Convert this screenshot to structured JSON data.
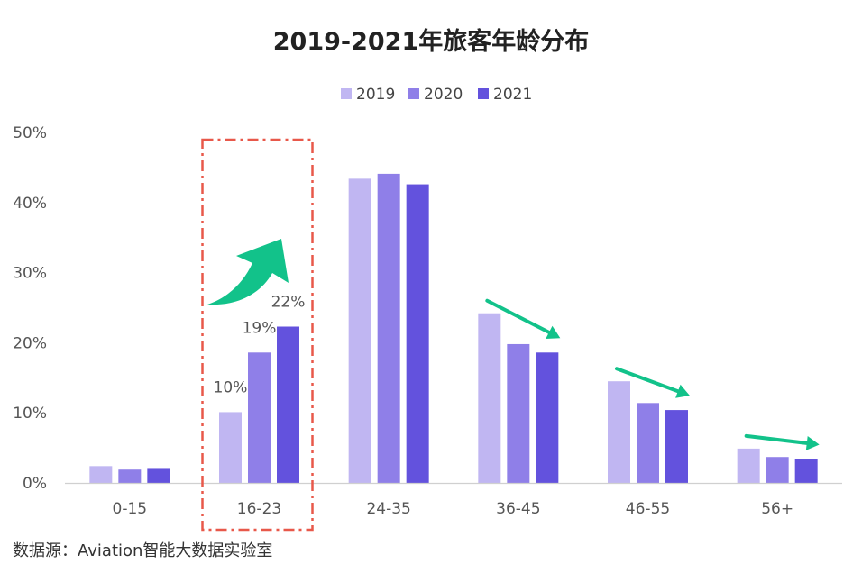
{
  "chart_data": {
    "type": "bar",
    "title": "2019-2021年旅客年龄分布",
    "categories": [
      "0-15",
      "16-23",
      "24-35",
      "36-45",
      "46-55",
      "56+"
    ],
    "series": [
      {
        "name": "2019",
        "color": "#c0b6f2",
        "values": [
          2.4,
          10.1,
          43.4,
          24.2,
          14.5,
          4.9
        ]
      },
      {
        "name": "2020",
        "color": "#8f7fe8",
        "values": [
          1.9,
          18.6,
          44.1,
          19.8,
          11.4,
          3.7
        ]
      },
      {
        "name": "2021",
        "color": "#6352dd",
        "values": [
          2.0,
          22.3,
          42.6,
          18.6,
          10.4,
          3.4
        ]
      }
    ],
    "ylim": [
      0,
      50
    ],
    "yticks": [
      "0%",
      "10%",
      "20%",
      "30%",
      "40%",
      "50%"
    ],
    "ytick_values": [
      0,
      10,
      20,
      30,
      40,
      50
    ],
    "data_labels": [
      {
        "category": "16-23",
        "series": "2019",
        "text": "10%"
      },
      {
        "category": "16-23",
        "series": "2020",
        "text": "19%"
      },
      {
        "category": "16-23",
        "series": "2021",
        "text": "22%"
      }
    ],
    "legend_position": "top-center",
    "grid": false,
    "highlight": {
      "category": "16-23",
      "style": "dash-dot box",
      "color": "#e8584a"
    },
    "trend_arrows": [
      {
        "category": "16-23",
        "direction": "up",
        "color": "#12c28a"
      },
      {
        "category": "36-45",
        "direction": "down",
        "color": "#12c28a"
      },
      {
        "category": "46-55",
        "direction": "down",
        "color": "#12c28a"
      },
      {
        "category": "56+",
        "direction": "down",
        "color": "#12c28a"
      }
    ]
  },
  "source": "数据源：Aviation智能大数据实验室"
}
